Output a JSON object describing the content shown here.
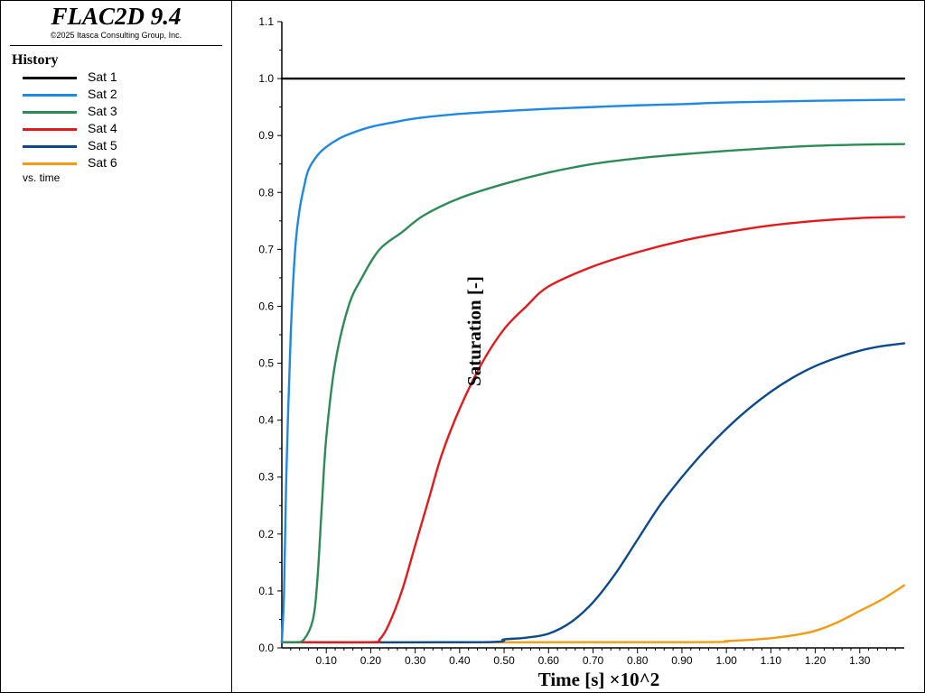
{
  "header": {
    "app_title": "FLAC2D 9.4",
    "copyright": "©2025 Itasca Consulting Group, Inc."
  },
  "legend": {
    "heading": "History",
    "vs_label": "vs. time"
  },
  "chart_data": {
    "type": "line",
    "xlabel": "Time [s] ×10^2",
    "ylabel": "Saturation [-]",
    "xlim": [
      0,
      1.4
    ],
    "ylim": [
      0,
      1.1
    ],
    "x_ticks": [
      0.1,
      0.2,
      0.3,
      0.4,
      0.5,
      0.6,
      0.7,
      0.8,
      0.9,
      1.0,
      1.1,
      1.2,
      1.3
    ],
    "x_tick_labels": [
      "0.10",
      "0.20",
      "0.30",
      "0.40",
      "0.50",
      "0.60",
      "0.70",
      "0.80",
      "0.90",
      "1.00",
      "1.10",
      "1.20",
      "1.30"
    ],
    "y_ticks": [
      0.0,
      0.1,
      0.2,
      0.3,
      0.4,
      0.5,
      0.6,
      0.7,
      0.8,
      0.9,
      1.0,
      1.1
    ],
    "y_tick_labels": [
      "0.0",
      "0.1",
      "0.2",
      "0.3",
      "0.4",
      "0.5",
      "0.6",
      "0.7",
      "0.8",
      "0.9",
      "1.0",
      "1.1"
    ],
    "grid": false,
    "legend_position": "left panel",
    "series": [
      {
        "name": "Sat 1",
        "color": "#000000",
        "points": [
          [
            0,
            1.0
          ],
          [
            1.4,
            1.0
          ]
        ]
      },
      {
        "name": "Sat 2",
        "color": "#1e88e5",
        "points": [
          [
            0,
            0.01
          ],
          [
            0.005,
            0.1
          ],
          [
            0.01,
            0.3
          ],
          [
            0.02,
            0.55
          ],
          [
            0.03,
            0.7
          ],
          [
            0.04,
            0.77
          ],
          [
            0.05,
            0.81
          ],
          [
            0.06,
            0.84
          ],
          [
            0.08,
            0.865
          ],
          [
            0.1,
            0.88
          ],
          [
            0.13,
            0.895
          ],
          [
            0.16,
            0.905
          ],
          [
            0.2,
            0.915
          ],
          [
            0.25,
            0.923
          ],
          [
            0.3,
            0.93
          ],
          [
            0.4,
            0.938
          ],
          [
            0.5,
            0.943
          ],
          [
            0.6,
            0.947
          ],
          [
            0.7,
            0.95
          ],
          [
            0.8,
            0.953
          ],
          [
            0.9,
            0.955
          ],
          [
            1.0,
            0.958
          ],
          [
            1.2,
            0.961
          ],
          [
            1.4,
            0.963
          ]
        ]
      },
      {
        "name": "Sat 3",
        "color": "#2e8b57",
        "points": [
          [
            0,
            0.01
          ],
          [
            0.03,
            0.01
          ],
          [
            0.05,
            0.015
          ],
          [
            0.07,
            0.05
          ],
          [
            0.08,
            0.12
          ],
          [
            0.09,
            0.25
          ],
          [
            0.1,
            0.37
          ],
          [
            0.12,
            0.5
          ],
          [
            0.15,
            0.6
          ],
          [
            0.18,
            0.65
          ],
          [
            0.22,
            0.7
          ],
          [
            0.27,
            0.73
          ],
          [
            0.32,
            0.76
          ],
          [
            0.4,
            0.79
          ],
          [
            0.5,
            0.815
          ],
          [
            0.6,
            0.835
          ],
          [
            0.7,
            0.85
          ],
          [
            0.8,
            0.86
          ],
          [
            0.9,
            0.867
          ],
          [
            1.0,
            0.873
          ],
          [
            1.1,
            0.878
          ],
          [
            1.2,
            0.882
          ],
          [
            1.3,
            0.884
          ],
          [
            1.4,
            0.885
          ]
        ]
      },
      {
        "name": "Sat 4",
        "color": "#e31a1c",
        "points": [
          [
            0,
            0.01
          ],
          [
            0.2,
            0.01
          ],
          [
            0.22,
            0.015
          ],
          [
            0.24,
            0.04
          ],
          [
            0.27,
            0.1
          ],
          [
            0.3,
            0.18
          ],
          [
            0.33,
            0.26
          ],
          [
            0.36,
            0.34
          ],
          [
            0.4,
            0.42
          ],
          [
            0.45,
            0.5
          ],
          [
            0.5,
            0.56
          ],
          [
            0.55,
            0.6
          ],
          [
            0.6,
            0.635
          ],
          [
            0.7,
            0.67
          ],
          [
            0.8,
            0.695
          ],
          [
            0.9,
            0.715
          ],
          [
            1.0,
            0.73
          ],
          [
            1.1,
            0.742
          ],
          [
            1.2,
            0.75
          ],
          [
            1.3,
            0.755
          ],
          [
            1.4,
            0.757
          ]
        ]
      },
      {
        "name": "Sat 5",
        "color": "#0d4a8c",
        "points": [
          [
            0,
            0.01
          ],
          [
            0.45,
            0.01
          ],
          [
            0.5,
            0.015
          ],
          [
            0.55,
            0.018
          ],
          [
            0.6,
            0.025
          ],
          [
            0.65,
            0.045
          ],
          [
            0.7,
            0.08
          ],
          [
            0.75,
            0.13
          ],
          [
            0.8,
            0.19
          ],
          [
            0.85,
            0.25
          ],
          [
            0.9,
            0.3
          ],
          [
            0.95,
            0.345
          ],
          [
            1.0,
            0.385
          ],
          [
            1.05,
            0.42
          ],
          [
            1.1,
            0.45
          ],
          [
            1.15,
            0.475
          ],
          [
            1.2,
            0.495
          ],
          [
            1.25,
            0.51
          ],
          [
            1.3,
            0.522
          ],
          [
            1.35,
            0.53
          ],
          [
            1.4,
            0.535
          ]
        ]
      },
      {
        "name": "Sat 6",
        "color": "#f39c12",
        "points": [
          [
            0,
            0.01
          ],
          [
            0.9,
            0.01
          ],
          [
            1.0,
            0.012
          ],
          [
            1.05,
            0.014
          ],
          [
            1.1,
            0.017
          ],
          [
            1.15,
            0.022
          ],
          [
            1.2,
            0.03
          ],
          [
            1.25,
            0.045
          ],
          [
            1.3,
            0.065
          ],
          [
            1.35,
            0.085
          ],
          [
            1.4,
            0.11
          ]
        ]
      }
    ]
  }
}
